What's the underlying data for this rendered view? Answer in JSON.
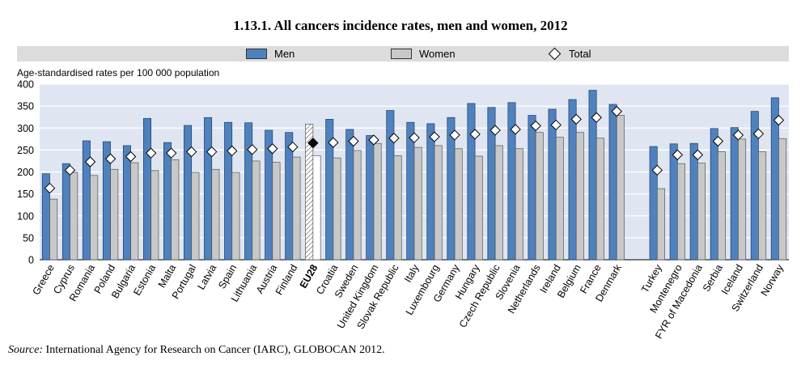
{
  "chart_data": {
    "type": "bar",
    "title": "1.13.1.  All cancers incidence rates, men and women, 2012",
    "ylabel": "Age-standardised rates per 100 000 population",
    "ylim": [
      0,
      400
    ],
    "yticks": [
      0,
      50,
      100,
      150,
      200,
      250,
      300,
      350,
      400
    ],
    "highlight": "EU28",
    "categories": [
      "Greece",
      "Cyprus",
      "Romania",
      "Poland",
      "Bulgaria",
      "Estonia",
      "Malta",
      "Portugal",
      "Latvia",
      "Spain",
      "Lithuania",
      "Austria",
      "Finland",
      "EU28",
      "Croatia",
      "Sweden",
      "United Kingdom",
      "Slovak Republic",
      "Italy",
      "Luxembourg",
      "Germany",
      "Hungary",
      "Czech Republic",
      "Slovenia",
      "Netherlands",
      "Ireland",
      "Belgium",
      "France",
      "Denmark",
      "",
      "Turkey",
      "Montenegro",
      "FYR of Macedonia",
      "Serbia",
      "Iceland",
      "Switzerland",
      "Norway"
    ],
    "series": [
      {
        "name": "Men",
        "color": "#4f81bd",
        "values": [
          196,
          219,
          271,
          269,
          260,
          322,
          267,
          306,
          324,
          313,
          312,
          295,
          290,
          309,
          320,
          297,
          283,
          340,
          313,
          310,
          324,
          356,
          347,
          358,
          329,
          343,
          365,
          386,
          354,
          null,
          258,
          264,
          265,
          299,
          301,
          338,
          369
        ]
      },
      {
        "name": "Women",
        "color": "#c8c8c8",
        "values": [
          138,
          199,
          192,
          206,
          221,
          203,
          228,
          199,
          206,
          199,
          225,
          222,
          234,
          237,
          232,
          249,
          265,
          237,
          256,
          260,
          253,
          236,
          260,
          253,
          290,
          279,
          290,
          277,
          329,
          null,
          162,
          219,
          220,
          246,
          275,
          246,
          276
        ]
      },
      {
        "name": "Total",
        "values": [
          163,
          204,
          223,
          230,
          235,
          243,
          243,
          246,
          246,
          248,
          251,
          253,
          257,
          266,
          267,
          270,
          273,
          277,
          278,
          280,
          284,
          286,
          295,
          297,
          305,
          307,
          320,
          324,
          338,
          null,
          204,
          239,
          239,
          270,
          284,
          287,
          318
        ]
      }
    ]
  },
  "legend": {
    "men": "Men",
    "women": "Women",
    "total": "Total"
  },
  "source": {
    "label": "Source:",
    "text": "International Agency for Research on Cancer (IARC), GLOBOCAN 2012."
  }
}
